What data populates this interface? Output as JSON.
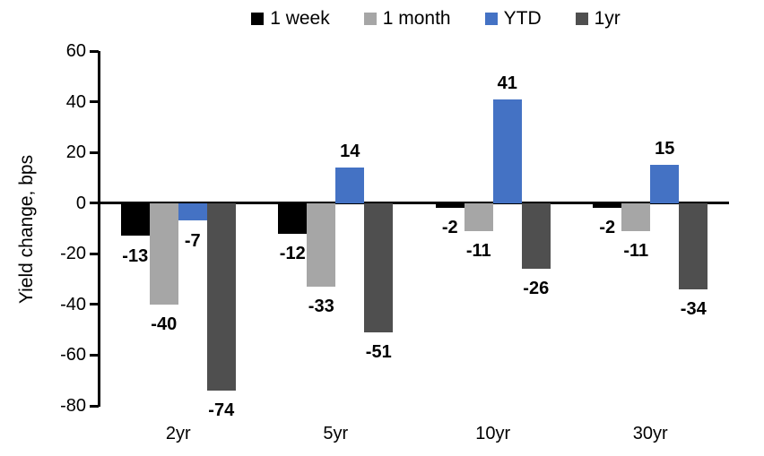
{
  "chart_data": {
    "type": "bar",
    "title": "",
    "xlabel": "",
    "ylabel": "Yield change, bps",
    "categories": [
      "2yr",
      "5yr",
      "10yr",
      "30yr"
    ],
    "series": [
      {
        "name": "1 week",
        "color": "#000000",
        "values": [
          -13,
          -12,
          -2,
          -2
        ]
      },
      {
        "name": "1 month",
        "color": "#A6A6A6",
        "values": [
          -40,
          -33,
          -11,
          -11
        ]
      },
      {
        "name": "YTD",
        "color": "#4472C4",
        "values": [
          -7,
          14,
          41,
          15
        ]
      },
      {
        "name": "1yr",
        "color": "#4F4F4F",
        "values": [
          -74,
          -51,
          -26,
          -34
        ]
      }
    ],
    "ylim": [
      -80,
      60
    ],
    "yticks": [
      60,
      40,
      20,
      0,
      -20,
      -40,
      -60,
      -80
    ],
    "grid": false,
    "legend_position": "top",
    "data_labels": true,
    "axis_color": "#000000"
  }
}
